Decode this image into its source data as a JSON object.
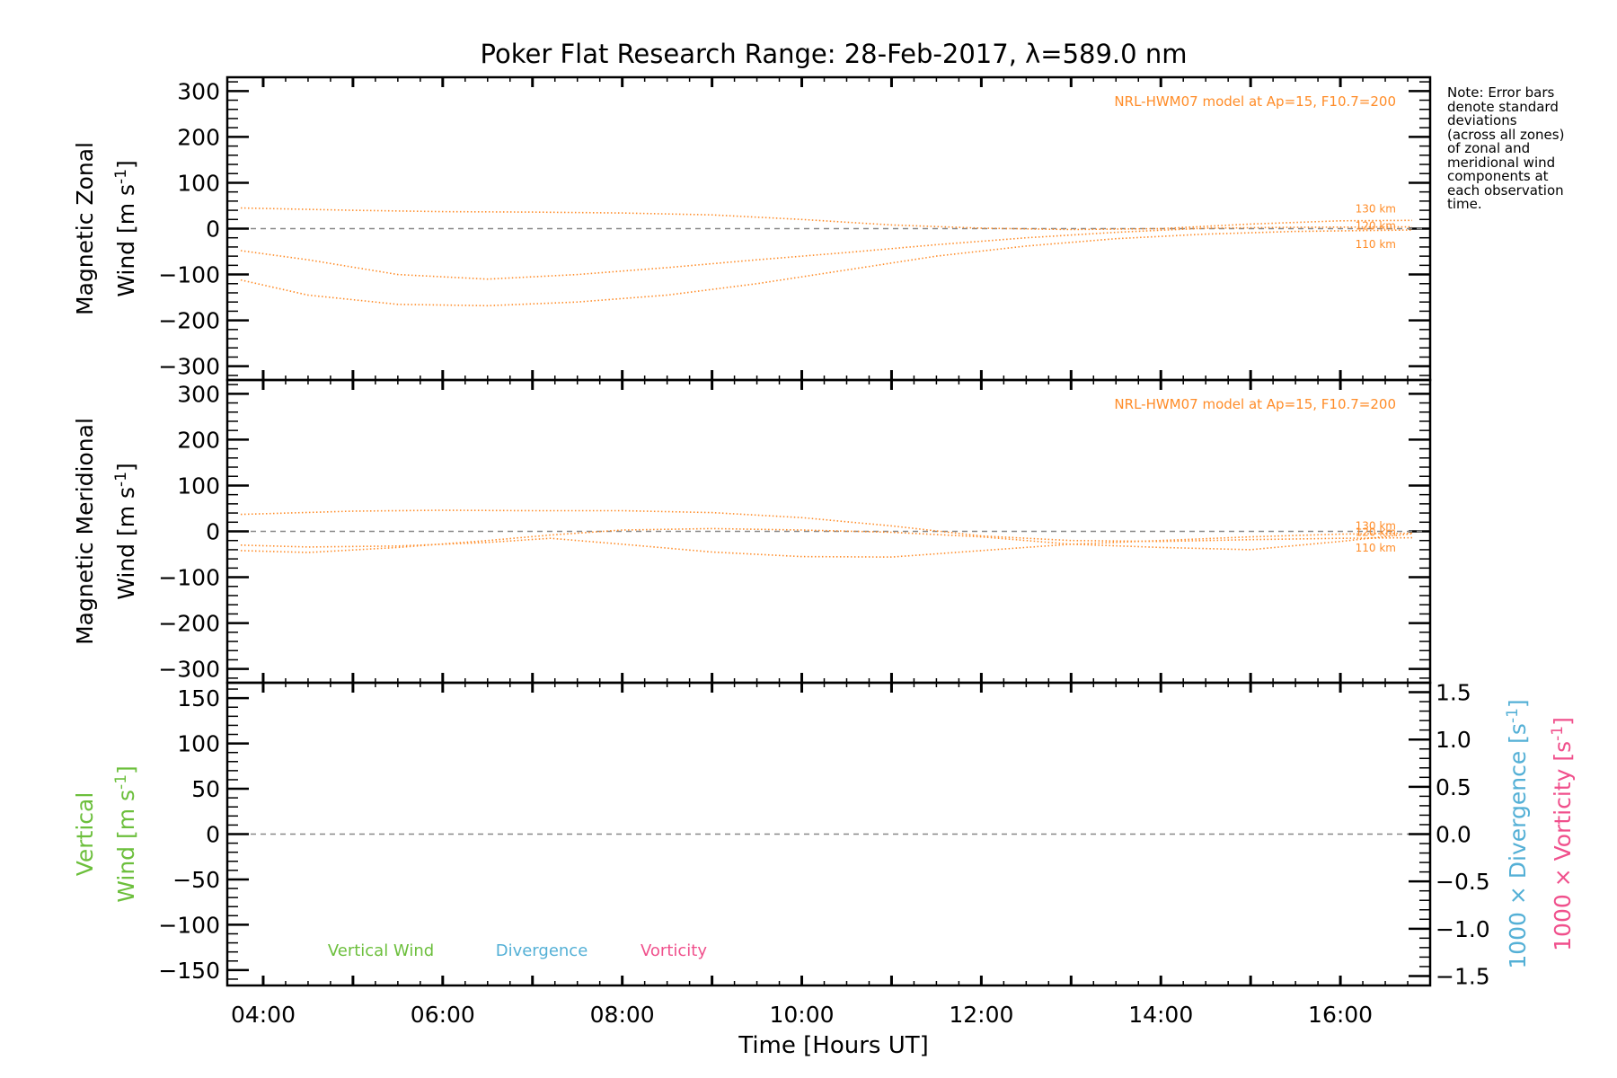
{
  "title": "Poker Flat Research Range: 28-Feb-2017, λ=589.0 nm",
  "note": [
    "Note: Error bars",
    "denote standard",
    "deviations",
    "(across all zones)",
    "of zonal and",
    "meridional wind",
    "components at",
    "each observation",
    "time."
  ],
  "colors": {
    "model": "#ff8c28",
    "vertical": "#6cbf3c",
    "divergence": "#54b0d6",
    "vorticity": "#f0508c",
    "zero_line": "#888888",
    "axes": "#000000"
  },
  "chart_data": [
    {
      "type": "line",
      "id": "zonal",
      "ylabel_line1": "Magnetic Zonal",
      "ylabel_line2": "Wind [m s",
      "ylabel_sup": "-1",
      "ylabel_end": "]",
      "ylim": [
        -330,
        330
      ],
      "yticks": [
        300,
        200,
        100,
        0,
        -100,
        -200,
        -300
      ],
      "xlim": [
        3.6,
        17.0
      ],
      "zero_line": true,
      "model_label": "NRL-HWM07 model at Ap=15, F10.7=200",
      "series": [
        {
          "name": "130 km",
          "x": [
            3.75,
            5,
            6,
            7,
            8,
            9,
            10,
            11,
            12,
            13,
            14,
            15,
            16,
            16.8
          ],
          "y": [
            45,
            40,
            37,
            36,
            34,
            30,
            20,
            8,
            1,
            -2,
            0,
            10,
            17,
            18
          ]
        },
        {
          "name": "120 km",
          "x": [
            3.75,
            4.5,
            5.5,
            6.5,
            7.5,
            8.5,
            9.5,
            10.5,
            11.5,
            12.5,
            13.5,
            14.5,
            15.5,
            16.8
          ],
          "y": [
            -48,
            -68,
            -100,
            -110,
            -100,
            -85,
            -68,
            -52,
            -35,
            -20,
            -8,
            1,
            3,
            4
          ]
        },
        {
          "name": "110 km",
          "x": [
            3.75,
            4.5,
            5.5,
            6.5,
            7.5,
            8.5,
            9.5,
            10.5,
            11.5,
            12.5,
            13.5,
            14.5,
            15.5,
            16.8
          ],
          "y": [
            -112,
            -145,
            -165,
            -168,
            -160,
            -145,
            -120,
            -90,
            -60,
            -38,
            -22,
            -12,
            -6,
            -3
          ]
        }
      ]
    },
    {
      "type": "line",
      "id": "meridional",
      "ylabel_line1": "Magnetic Meridional",
      "ylabel_line2": "Wind [m s",
      "ylabel_sup": "-1",
      "ylabel_end": "]",
      "ylim": [
        -330,
        330
      ],
      "yticks": [
        300,
        200,
        100,
        0,
        -100,
        -200,
        -300
      ],
      "xlim": [
        3.6,
        17.0
      ],
      "zero_line": true,
      "model_label": "NRL-HWM07 model at Ap=15, F10.7=200",
      "series": [
        {
          "name": "130 km",
          "x": [
            3.75,
            5,
            6,
            7,
            8,
            9,
            10,
            11,
            12,
            13,
            14,
            15,
            16,
            16.8
          ],
          "y": [
            37,
            44,
            46,
            45,
            45,
            41,
            30,
            12,
            -10,
            -20,
            -22,
            -18,
            -15,
            -14
          ]
        },
        {
          "name": "120 km",
          "x": [
            3.75,
            4.5,
            5.5,
            6.5,
            7.2,
            8,
            9,
            10,
            11,
            12,
            13,
            14,
            15,
            16,
            16.8
          ],
          "y": [
            -42,
            -46,
            -35,
            -20,
            -8,
            3,
            6,
            3,
            -2,
            -12,
            -28,
            -20,
            -12,
            -6,
            -4
          ]
        },
        {
          "name": "110 km",
          "x": [
            3.75,
            4.5,
            5.5,
            6.5,
            7.2,
            8,
            9,
            10,
            11,
            12,
            13,
            14,
            15,
            16,
            16.8
          ],
          "y": [
            -30,
            -34,
            -32,
            -24,
            -15,
            -28,
            -45,
            -55,
            -56,
            -42,
            -28,
            -35,
            -40,
            -22,
            -5
          ]
        }
      ]
    },
    {
      "type": "line",
      "id": "vertical",
      "ylabel_line1": "Vertical",
      "ylabel_line2": "Wind [m s",
      "ylabel_sup": "-1",
      "ylabel_end": "]",
      "ylim": [
        -167,
        167
      ],
      "yticks": [
        150,
        100,
        50,
        0,
        -50,
        -100,
        -150
      ],
      "y2lim": [
        -1.6,
        1.6
      ],
      "y2ticks": [
        "1.5",
        "1.0",
        "0.5",
        "0.0",
        "-0.5",
        "-1.0",
        "-1.5"
      ],
      "y2ticks_val": [
        1.5,
        1.0,
        0.5,
        0.0,
        -0.5,
        -1.0,
        -1.5
      ],
      "y2label_div": "1000 × Divergence [s",
      "y2label_vor": "1000 × Vorticity [s",
      "xlim": [
        3.6,
        17.0
      ],
      "zero_line": true,
      "legend": [
        "Vertical Wind",
        "Divergence",
        "Vorticity"
      ],
      "series": []
    }
  ],
  "xaxis": {
    "label": "Time [Hours UT]",
    "ticks": [
      {
        "value": 4,
        "label": "04:00"
      },
      {
        "value": 6,
        "label": "06:00"
      },
      {
        "value": 8,
        "label": "08:00"
      },
      {
        "value": 10,
        "label": "10:00"
      },
      {
        "value": 12,
        "label": "12:00"
      },
      {
        "value": 14,
        "label": "14:00"
      },
      {
        "value": 16,
        "label": "16:00"
      }
    ]
  }
}
